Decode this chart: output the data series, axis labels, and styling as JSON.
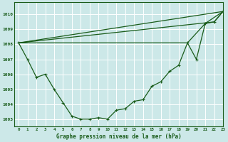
{
  "title": "Graphe pression niveau de la mer (hPa)",
  "background_color": "#cce8e8",
  "grid_color": "#ffffff",
  "line_color": "#1a5c1a",
  "xlim": [
    -0.5,
    23
  ],
  "ylim": [
    1002.5,
    1010.8
  ],
  "yticks": [
    1003,
    1004,
    1005,
    1006,
    1007,
    1008,
    1009,
    1010
  ],
  "xticks": [
    0,
    1,
    2,
    3,
    4,
    5,
    6,
    7,
    8,
    9,
    10,
    11,
    12,
    13,
    14,
    15,
    16,
    17,
    18,
    19,
    20,
    21,
    22,
    23
  ],
  "line1_x": [
    0,
    1,
    2,
    3,
    4,
    5,
    6,
    7,
    8,
    9,
    10,
    11,
    12,
    13,
    14,
    15,
    16,
    17,
    18,
    19,
    20,
    21,
    22,
    23
  ],
  "line1_y": [
    1008.1,
    1007.0,
    1005.8,
    1006.0,
    1005.0,
    1004.1,
    1003.2,
    1003.0,
    1003.0,
    1003.1,
    1003.0,
    1003.6,
    1003.7,
    1004.2,
    1004.3,
    1005.2,
    1005.5,
    1006.2,
    1006.6,
    1008.1,
    1007.0,
    1009.4,
    1009.5,
    1010.2
  ],
  "line2_x": [
    0,
    23
  ],
  "line2_y": [
    1008.1,
    1010.2
  ],
  "line3_x": [
    0,
    22,
    23
  ],
  "line3_y": [
    1008.1,
    1009.5,
    1010.2
  ],
  "line4_x": [
    0,
    19,
    21,
    23
  ],
  "line4_y": [
    1008.1,
    1008.1,
    1009.4,
    1010.2
  ]
}
